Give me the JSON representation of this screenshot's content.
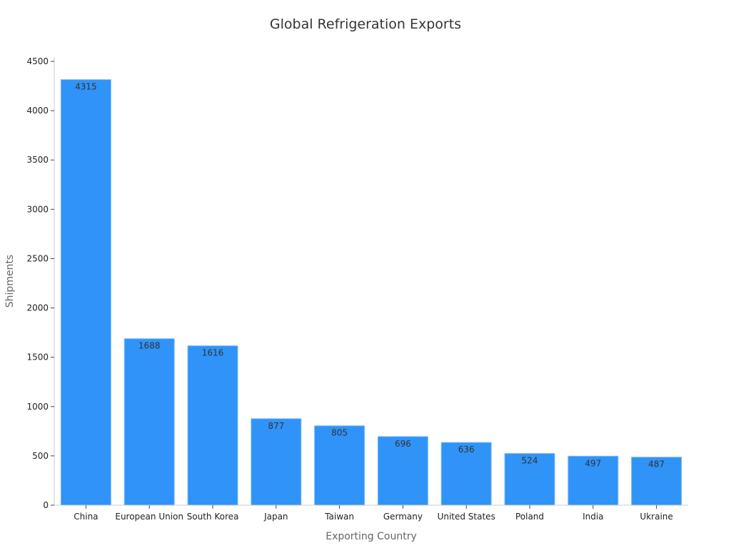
{
  "chart_data": {
    "type": "bar",
    "title": "Global Refrigeration Exports",
    "xlabel": "Exporting Country",
    "ylabel": "Shipments",
    "categories": [
      "China",
      "European Union",
      "South Korea",
      "Japan",
      "Taiwan",
      "Germany",
      "United States",
      "Poland",
      "India",
      "Ukraine"
    ],
    "values": [
      4315,
      1688,
      1616,
      877,
      805,
      696,
      636,
      524,
      497,
      487
    ],
    "ylim": [
      0,
      4500
    ],
    "yticks": [
      0,
      500,
      1000,
      1500,
      2000,
      2500,
      3000,
      3500,
      4000,
      4500
    ],
    "grid": false,
    "data_labels": true,
    "colors": {
      "bar": "#2f93f8",
      "bar_edge": "#7dbcfb",
      "axis": "#cccccc"
    }
  }
}
